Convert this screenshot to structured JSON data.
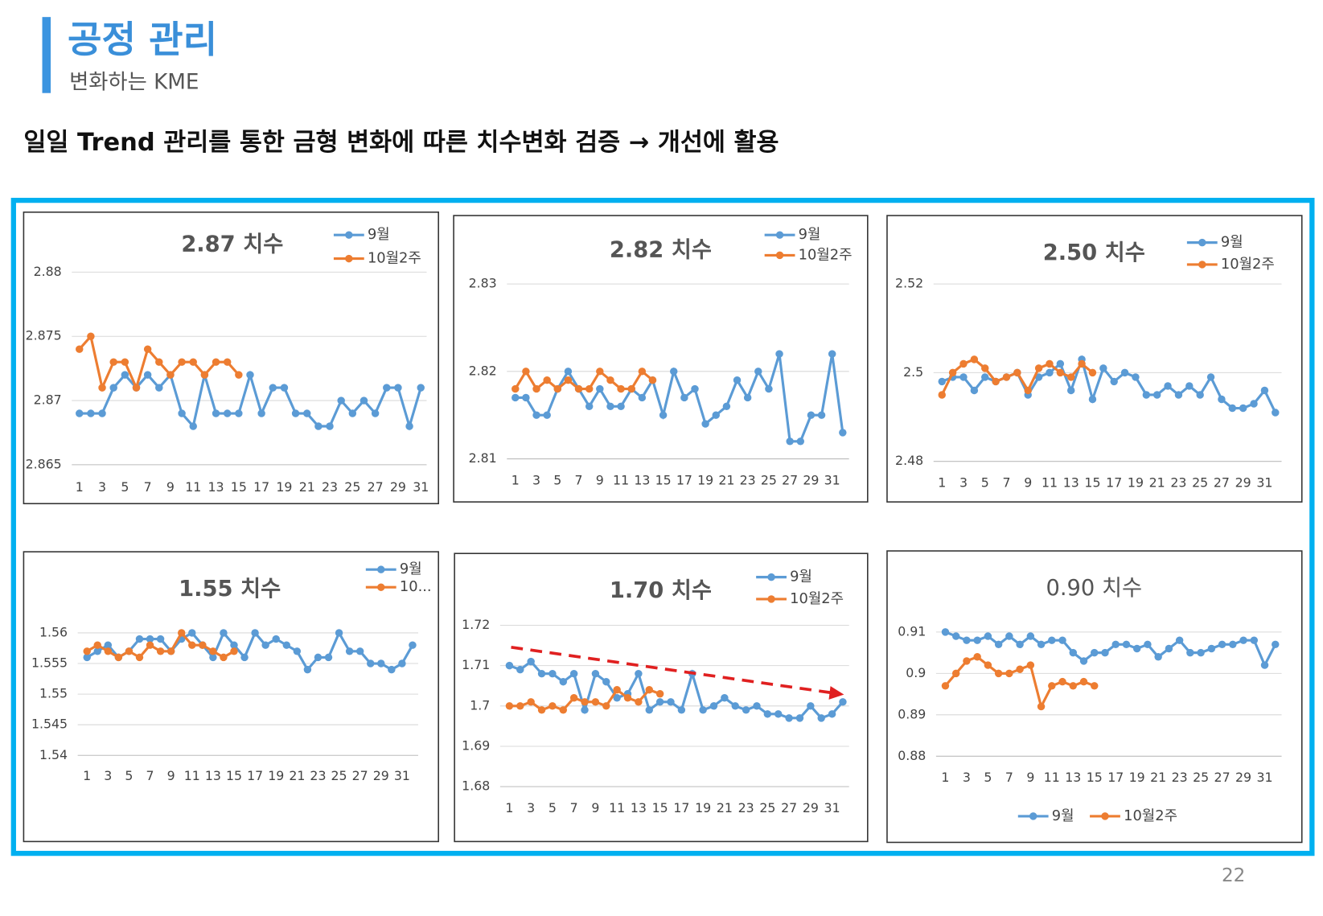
{
  "header": {
    "title": "공정 관리",
    "subtitle": "변화하는 KME",
    "headline": "일일 Trend 관리를 통한 금형 변화에 따른 치수변화 검증 → 개선에 활용",
    "page_number": "22"
  },
  "chart_data": [
    {
      "type": "line",
      "title": "2.87 치수",
      "legend": "top-right",
      "grid": true,
      "categories": [
        1,
        null,
        3,
        null,
        5,
        null,
        7,
        null,
        9,
        null,
        11,
        null,
        13,
        null,
        15,
        null,
        17,
        null,
        19,
        null,
        21,
        null,
        23,
        null,
        25,
        null,
        27,
        null,
        29,
        null,
        31
      ],
      "ylim": [
        2.865,
        2.88
      ],
      "yticks": [
        2.865,
        2.87,
        2.875,
        2.88
      ],
      "series": [
        {
          "name": "9월",
          "color": "#5b9bd5",
          "values": [
            2.869,
            2.869,
            2.869,
            2.871,
            2.872,
            2.871,
            2.872,
            2.871,
            2.872,
            2.869,
            2.868,
            2.872,
            2.869,
            2.869,
            2.869,
            2.872,
            2.869,
            2.871,
            2.871,
            2.869,
            2.869,
            2.868,
            2.868,
            2.87,
            2.869,
            2.87,
            2.869,
            2.871,
            2.871,
            2.868,
            2.871
          ]
        },
        {
          "name": "10월2주",
          "color": "#ed7d31",
          "values": [
            2.874,
            2.875,
            2.871,
            2.873,
            2.873,
            2.871,
            2.874,
            2.873,
            2.872,
            2.873,
            2.873,
            2.872,
            2.873,
            2.873,
            2.872,
            null,
            null,
            null,
            null,
            null,
            null,
            null,
            null,
            null,
            null,
            null,
            null,
            null,
            null,
            null,
            null
          ]
        }
      ]
    },
    {
      "type": "line",
      "title": "2.82 치수",
      "legend": "top-right",
      "grid": true,
      "categories": [
        1,
        null,
        3,
        null,
        5,
        null,
        7,
        null,
        9,
        null,
        11,
        null,
        13,
        null,
        15,
        null,
        17,
        null,
        19,
        null,
        21,
        null,
        23,
        null,
        25,
        null,
        27,
        null,
        29,
        null,
        31,
        null
      ],
      "ylim": [
        2.81,
        2.83
      ],
      "yticks": [
        2.81,
        2.82,
        2.83
      ],
      "series": [
        {
          "name": "9월",
          "color": "#5b9bd5",
          "values": [
            2.817,
            2.817,
            2.815,
            2.815,
            2.818,
            2.82,
            2.818,
            2.816,
            2.818,
            2.816,
            2.816,
            2.818,
            2.817,
            2.819,
            2.815,
            2.82,
            2.817,
            2.818,
            2.814,
            2.815,
            2.816,
            2.819,
            2.817,
            2.82,
            2.818,
            2.822,
            2.812,
            2.812,
            2.815,
            2.815,
            2.822,
            2.813
          ]
        },
        {
          "name": "10월2주",
          "color": "#ed7d31",
          "values": [
            2.818,
            2.82,
            2.818,
            2.819,
            2.818,
            2.819,
            2.818,
            2.818,
            2.82,
            2.819,
            2.818,
            2.818,
            2.82,
            2.819,
            null,
            null,
            null,
            null,
            null,
            null,
            null,
            null,
            null,
            null,
            null,
            null,
            null,
            null,
            null,
            null,
            null,
            null
          ]
        }
      ]
    },
    {
      "type": "line",
      "title": "2.50 치수",
      "legend": "top-right",
      "grid": true,
      "categories": [
        1,
        null,
        3,
        null,
        5,
        null,
        7,
        null,
        9,
        null,
        11,
        null,
        13,
        null,
        15,
        null,
        17,
        null,
        19,
        null,
        21,
        null,
        23,
        null,
        25,
        null,
        27,
        null,
        29,
        null,
        31,
        null
      ],
      "ylim": [
        2.48,
        2.52
      ],
      "yticks": [
        2.48,
        2.5,
        2.52
      ],
      "series": [
        {
          "name": "9월",
          "color": "#5b9bd5",
          "values": [
            2.498,
            2.499,
            2.499,
            2.496,
            2.499,
            2.498,
            2.499,
            2.5,
            2.495,
            2.499,
            2.5,
            2.502,
            2.496,
            2.503,
            2.494,
            2.501,
            2.498,
            2.5,
            2.499,
            2.495,
            2.495,
            2.497,
            2.495,
            2.497,
            2.495,
            2.499,
            2.494,
            2.492,
            2.492,
            2.493,
            2.496,
            2.491
          ]
        },
        {
          "name": "10월2주",
          "color": "#ed7d31",
          "values": [
            2.495,
            2.5,
            2.502,
            2.503,
            2.501,
            2.498,
            2.499,
            2.5,
            2.496,
            2.501,
            2.502,
            2.5,
            2.499,
            2.502,
            2.5,
            null,
            null,
            null,
            null,
            null,
            null,
            null,
            null,
            null,
            null,
            null,
            null,
            null,
            null,
            null,
            null,
            null
          ]
        }
      ]
    },
    {
      "type": "line",
      "title": "1.55 치수",
      "legend": "top-right",
      "grid": true,
      "categories": [
        1,
        null,
        3,
        null,
        5,
        null,
        7,
        null,
        9,
        null,
        11,
        null,
        13,
        null,
        15,
        null,
        17,
        null,
        19,
        null,
        21,
        null,
        23,
        null,
        25,
        null,
        27,
        null,
        29,
        null,
        31,
        null
      ],
      "ylim": [
        1.54,
        1.56
      ],
      "yticks": [
        1.54,
        1.545,
        1.55,
        1.555,
        1.56
      ],
      "series": [
        {
          "name": "9월",
          "color": "#5b9bd5",
          "values": [
            1.556,
            1.557,
            1.558,
            1.556,
            1.557,
            1.559,
            1.559,
            1.559,
            1.557,
            1.559,
            1.56,
            1.558,
            1.556,
            1.56,
            1.558,
            1.556,
            1.56,
            1.558,
            1.559,
            1.558,
            1.557,
            1.554,
            1.556,
            1.556,
            1.56,
            1.557,
            1.557,
            1.555,
            1.555,
            1.554,
            1.555,
            1.558
          ]
        },
        {
          "name": "10...",
          "color": "#ed7d31",
          "values": [
            1.557,
            1.558,
            1.557,
            1.556,
            1.557,
            1.556,
            1.558,
            1.557,
            1.557,
            1.56,
            1.558,
            1.558,
            1.557,
            1.556,
            1.557,
            null,
            null,
            null,
            null,
            null,
            null,
            null,
            null,
            null,
            null,
            null,
            null,
            null,
            null,
            null,
            null,
            null
          ]
        }
      ]
    },
    {
      "type": "line",
      "title": "1.70 치수",
      "legend": "top-right",
      "grid": true,
      "categories": [
        1,
        null,
        3,
        null,
        5,
        null,
        7,
        null,
        9,
        null,
        11,
        null,
        13,
        null,
        15,
        null,
        17,
        null,
        19,
        null,
        21,
        null,
        23,
        null,
        25,
        null,
        27,
        null,
        29,
        null,
        31,
        null
      ],
      "ylim": [
        1.68,
        1.72
      ],
      "yticks": [
        1.68,
        1.69,
        1.7,
        1.71,
        1.72
      ],
      "series": [
        {
          "name": "9월",
          "color": "#5b9bd5",
          "values": [
            1.71,
            1.709,
            1.711,
            1.708,
            1.708,
            1.706,
            1.708,
            1.699,
            1.708,
            1.706,
            1.702,
            1.703,
            1.708,
            1.699,
            1.701,
            1.701,
            1.699,
            1.708,
            1.699,
            1.7,
            1.702,
            1.7,
            1.699,
            1.7,
            1.698,
            1.698,
            1.697,
            1.697,
            1.7,
            1.697,
            1.698,
            1.701
          ]
        },
        {
          "name": "10월2주",
          "color": "#ed7d31",
          "values": [
            1.7,
            1.7,
            1.701,
            1.699,
            1.7,
            1.699,
            1.702,
            1.701,
            1.701,
            1.7,
            1.704,
            1.702,
            1.701,
            1.704,
            1.703,
            null,
            null,
            null,
            null,
            null,
            null,
            null,
            null,
            null,
            null,
            null,
            null,
            null,
            null,
            null,
            null,
            null
          ]
        }
      ]
    },
    {
      "type": "line",
      "title": "0.90 치수",
      "legend": "bottom",
      "grid": true,
      "categories": [
        1,
        null,
        3,
        null,
        5,
        null,
        7,
        null,
        9,
        null,
        11,
        null,
        13,
        null,
        15,
        null,
        17,
        null,
        19,
        null,
        21,
        null,
        23,
        null,
        25,
        null,
        27,
        null,
        29,
        null,
        31,
        null
      ],
      "ylim": [
        0.88,
        0.91
      ],
      "yticks": [
        0.88,
        0.89,
        0.9,
        0.91
      ],
      "series": [
        {
          "name": "9월",
          "color": "#5b9bd5",
          "values": [
            0.91,
            0.909,
            0.908,
            0.908,
            0.909,
            0.907,
            0.909,
            0.907,
            0.909,
            0.907,
            0.908,
            0.908,
            0.905,
            0.903,
            0.905,
            0.905,
            0.907,
            0.907,
            0.906,
            0.907,
            0.904,
            0.906,
            0.908,
            0.905,
            0.905,
            0.906,
            0.907,
            0.907,
            0.908,
            0.908,
            0.902,
            0.907
          ]
        },
        {
          "name": "10월2주",
          "color": "#ed7d31",
          "values": [
            0.897,
            0.9,
            0.903,
            0.904,
            0.902,
            0.9,
            0.9,
            0.901,
            0.902,
            0.892,
            0.897,
            0.898,
            0.897,
            0.898,
            0.897,
            null,
            null,
            null,
            null,
            null,
            null,
            null,
            null,
            null,
            null,
            null,
            null,
            null,
            null,
            null,
            null,
            null
          ]
        }
      ]
    }
  ]
}
